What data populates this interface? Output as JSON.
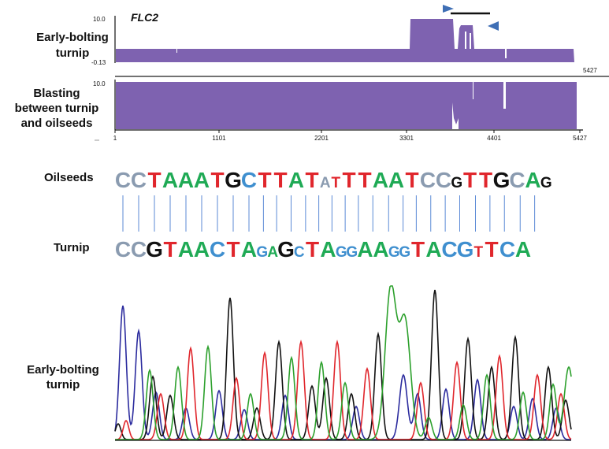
{
  "gene_label": "FLC2",
  "track1": {
    "label_lines": [
      "Early-bolting",
      "turnip"
    ],
    "ymax_label": "10.0",
    "ymin_label": "-0.13",
    "end_label": "5427"
  },
  "track2": {
    "label_lines": [
      "Blasting",
      "between turnip",
      "and oilseeds"
    ],
    "ymax_label": "10.0"
  },
  "axis": {
    "ticks": [
      "1",
      "1101",
      "2201",
      "3301",
      "4401",
      "5427"
    ]
  },
  "alignment": {
    "oilseeds_label": "Oilseeds",
    "turnip_label": "Turnip",
    "oilseeds": [
      {
        "b": "C",
        "s": "L"
      },
      {
        "b": "C",
        "s": "L"
      },
      {
        "b": "T",
        "s": "L"
      },
      {
        "b": "A",
        "s": "L"
      },
      {
        "b": "A",
        "s": "L"
      },
      {
        "b": "A",
        "s": "L"
      },
      {
        "b": "T",
        "s": "L"
      },
      {
        "b": "G",
        "s": "L"
      },
      {
        "b": "C",
        "s": "L"
      },
      {
        "b": "T",
        "s": "L"
      },
      {
        "b": "T",
        "s": "L"
      },
      {
        "b": "A",
        "s": "L"
      },
      {
        "b": "T",
        "s": "L"
      },
      {
        "b": "A",
        "s": "S"
      },
      {
        "b": "T",
        "s": "S"
      },
      {
        "b": "T",
        "s": "L"
      },
      {
        "b": "T",
        "s": "L"
      },
      {
        "b": "A",
        "s": "L"
      },
      {
        "b": "A",
        "s": "L"
      },
      {
        "b": "T",
        "s": "L"
      },
      {
        "b": "C",
        "s": "L"
      },
      {
        "b": "C",
        "s": "L"
      },
      {
        "b": "G",
        "s": "S"
      },
      {
        "b": "T",
        "s": "L"
      },
      {
        "b": "T",
        "s": "L"
      },
      {
        "b": "G",
        "s": "L"
      },
      {
        "b": "C",
        "s": "L"
      },
      {
        "b": "A",
        "s": "L"
      },
      {
        "b": "G",
        "s": "S"
      }
    ],
    "turnip": [
      {
        "b": "C",
        "s": "L"
      },
      {
        "b": "C",
        "s": "L"
      },
      {
        "b": "G",
        "s": "L"
      },
      {
        "b": "T",
        "s": "L"
      },
      {
        "b": "A",
        "s": "L"
      },
      {
        "b": "A",
        "s": "L"
      },
      {
        "b": "C",
        "s": "L"
      },
      {
        "b": "T",
        "s": "L"
      },
      {
        "b": "A",
        "s": "L"
      },
      {
        "b": "G",
        "s": "S"
      },
      {
        "b": "A",
        "s": "S"
      },
      {
        "b": "G",
        "s": "L"
      },
      {
        "b": "C",
        "s": "S"
      },
      {
        "b": "T",
        "s": "L"
      },
      {
        "b": "A",
        "s": "L"
      },
      {
        "b": "G",
        "s": "S"
      },
      {
        "b": "G",
        "s": "S"
      },
      {
        "b": "A",
        "s": "L"
      },
      {
        "b": "A",
        "s": "L"
      },
      {
        "b": "G",
        "s": "S"
      },
      {
        "b": "G",
        "s": "S"
      },
      {
        "b": "T",
        "s": "L"
      },
      {
        "b": "A",
        "s": "L"
      },
      {
        "b": "C",
        "s": "L"
      },
      {
        "b": "G",
        "s": "L"
      },
      {
        "b": "T",
        "s": "S"
      },
      {
        "b": "T",
        "s": "L"
      },
      {
        "b": "C",
        "s": "L"
      },
      {
        "b": "A",
        "s": "L"
      }
    ]
  },
  "chromatogram": {
    "label_lines": [
      "Early-bolting",
      "turnip"
    ]
  },
  "colors": {
    "coverage": "#7e62b0",
    "arrow": "#3f6fb5",
    "base_A": "#1faa55",
    "base_T": "#e0262c",
    "base_G_oil": "#111111",
    "base_C": "#3f8fcf",
    "base_C_grey": "#8a9bb0",
    "trace_A": "#2ca02c",
    "trace_C": "#2b2b9e",
    "trace_G": "#111111",
    "trace_T": "#e0262c",
    "link_line": "#5b8ad6"
  }
}
